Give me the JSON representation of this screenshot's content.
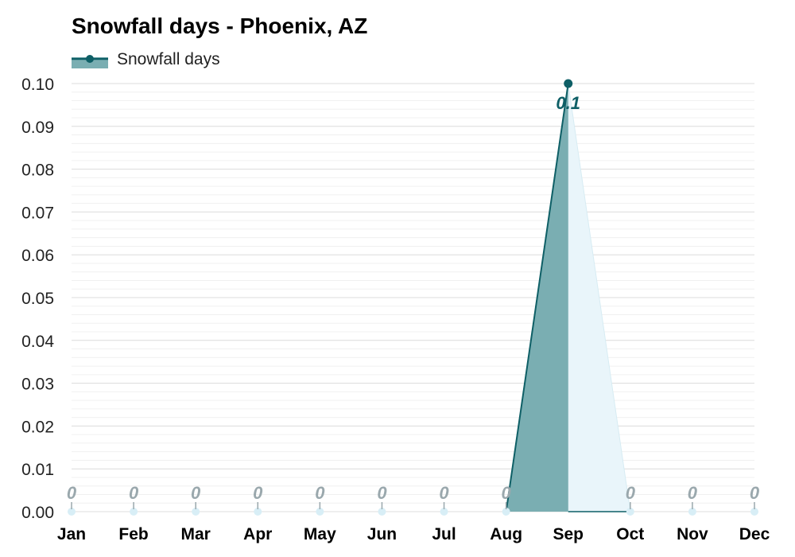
{
  "chart_data": {
    "type": "line",
    "title": "Snowfall days - Phoenix, AZ",
    "xlabel": "",
    "ylabel": "",
    "categories": [
      "Jan",
      "Feb",
      "Mar",
      "Apr",
      "May",
      "Jun",
      "Jul",
      "Aug",
      "Sep",
      "Oct",
      "Nov",
      "Dec"
    ],
    "series": [
      {
        "name": "Snowfall days",
        "values": [
          0,
          0,
          0,
          0,
          0,
          0,
          0,
          0,
          0.1,
          0,
          0,
          0
        ]
      }
    ],
    "data_labels": [
      "0",
      "0",
      "0",
      "0",
      "0",
      "0",
      "0",
      "0",
      "0.1",
      "0",
      "0",
      "0"
    ],
    "ylim": [
      0,
      0.1
    ],
    "yticks": [
      "0.00",
      "0.01",
      "0.02",
      "0.03",
      "0.04",
      "0.05",
      "0.06",
      "0.07",
      "0.08",
      "0.09",
      "0.10"
    ],
    "grid": true,
    "legend_position": "top-left",
    "colors": {
      "line": "#0e5f66",
      "fill": "#7aaeb2",
      "fill_light": "#e9f5fa",
      "zero_label": "#9aa8ad",
      "zero_marker": "#d8eef6",
      "grid": "#e6e6e6"
    }
  }
}
